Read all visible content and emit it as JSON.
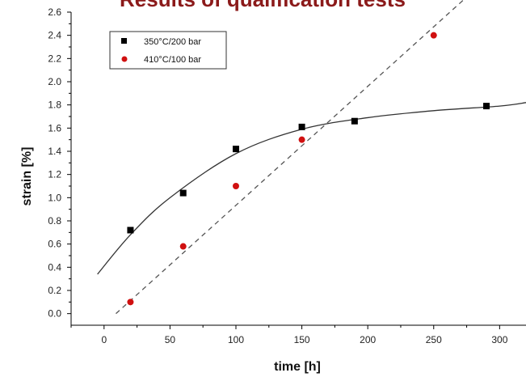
{
  "chart_data": {
    "type": "scatter",
    "title": "Results of qualification tests",
    "xlabel": "time [h]",
    "ylabel": "strain [%]",
    "xlim": [
      -25,
      320
    ],
    "ylim": [
      -0.1,
      2.6
    ],
    "x_ticks": [
      0,
      50,
      100,
      150,
      200,
      250,
      300
    ],
    "y_ticks": [
      0.0,
      0.2,
      0.4,
      0.6,
      0.8,
      1.0,
      1.2,
      1.4,
      1.6,
      1.8,
      2.0,
      2.2,
      2.4,
      2.6
    ],
    "legend_position": "top-left",
    "grid": false,
    "series": [
      {
        "name": "350°C/200 bar",
        "marker": "square",
        "color": "#000000",
        "points": [
          [
            20,
            0.72
          ],
          [
            60,
            1.04
          ],
          [
            100,
            1.42
          ],
          [
            150,
            1.61
          ],
          [
            190,
            1.66
          ],
          [
            290,
            1.79
          ]
        ],
        "fit": {
          "style": "solid",
          "color": "#333333",
          "points": [
            [
              -5,
              0.34
            ],
            [
              20,
              0.68
            ],
            [
              50,
              1.0
            ],
            [
              100,
              1.38
            ],
            [
              150,
              1.59
            ],
            [
              200,
              1.69
            ],
            [
              250,
              1.75
            ],
            [
              300,
              1.79
            ],
            [
              320,
              1.82
            ]
          ]
        }
      },
      {
        "name": "410°C/100 bar",
        "marker": "circle",
        "color": "#d01010",
        "points": [
          [
            20,
            0.1
          ],
          [
            60,
            0.58
          ],
          [
            100,
            1.1
          ],
          [
            150,
            1.5
          ],
          [
            250,
            2.4
          ]
        ],
        "fit": {
          "style": "dashed",
          "color": "#555555",
          "points": [
            [
              9,
              0.0
            ],
            [
              275,
              2.73
            ]
          ]
        }
      }
    ]
  }
}
